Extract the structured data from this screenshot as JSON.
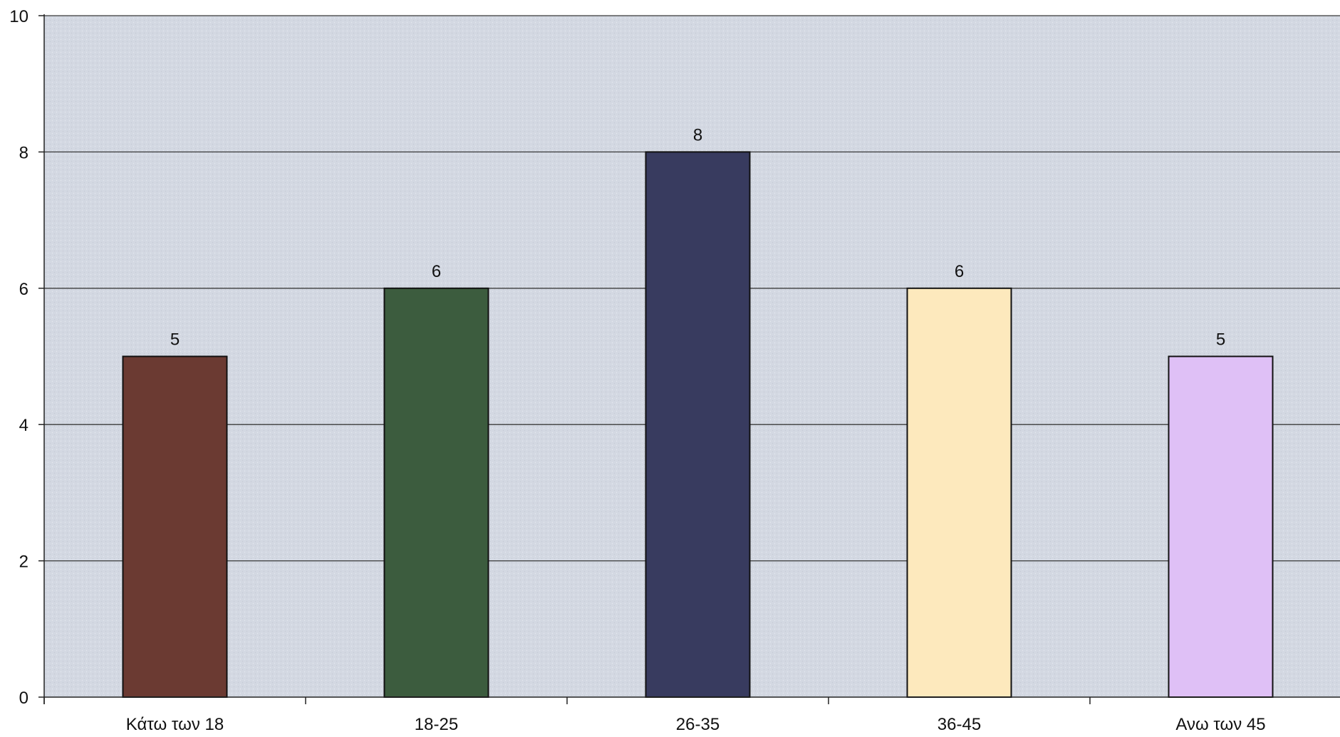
{
  "chart_data": {
    "type": "bar",
    "title": "",
    "xlabel": "",
    "ylabel": "",
    "categories": [
      "Κάτω των 18",
      "18-25",
      "26-35",
      "36-45",
      "Ανω των 45"
    ],
    "values": [
      5,
      6,
      8,
      6,
      5
    ],
    "data_labels": [
      "5",
      "6",
      "8",
      "6",
      "5"
    ],
    "bar_colors": [
      "#6b3a32",
      "#3c5c3e",
      "#383b5f",
      "#fde9bd",
      "#dfc0f6"
    ],
    "ylim": [
      0,
      10
    ],
    "yticks": [
      0,
      2,
      4,
      6,
      8,
      10
    ],
    "ytick_labels": [
      "0",
      "2",
      "4",
      "6",
      "8",
      "10"
    ],
    "grid": true,
    "legend": "none",
    "plot_background": "#d3d8e2"
  }
}
